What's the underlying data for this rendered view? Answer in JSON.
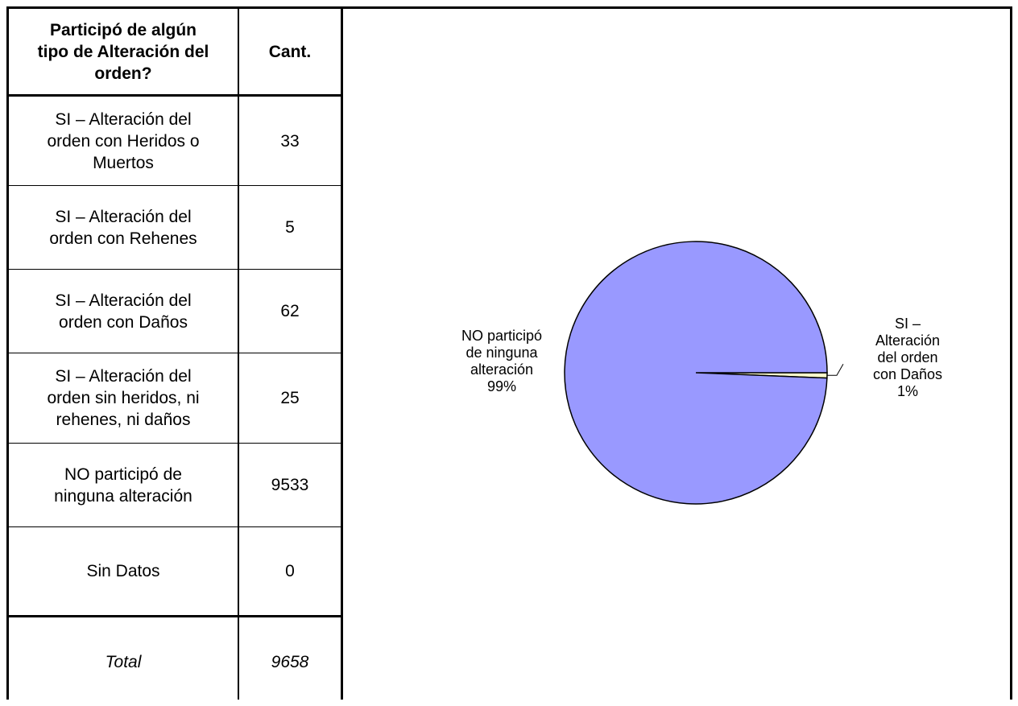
{
  "table": {
    "header_question": "Participó de algún tipo de Alteración del orden?",
    "header_question_lines": [
      "Participó de algún",
      "tipo de Alteración del",
      "orden?"
    ],
    "header_count": "Cant.",
    "rows": [
      {
        "lines": [
          "SI – Alteración del",
          "orden con Heridos o",
          "Muertos"
        ],
        "count": "33"
      },
      {
        "lines": [
          "SI – Alteración del",
          "orden con Rehenes"
        ],
        "count": "5"
      },
      {
        "lines": [
          "SI – Alteración del",
          "orden con Daños"
        ],
        "count": "62"
      },
      {
        "lines": [
          "SI – Alteración del",
          "orden sin heridos, ni",
          "rehenes, ni daños"
        ],
        "count": "25"
      },
      {
        "lines": [
          "NO participó de",
          "ninguna alteración"
        ],
        "count": "9533"
      },
      {
        "lines": [
          "Sin Datos"
        ],
        "count": "0"
      }
    ],
    "total_label": "Total",
    "total_count": "9658"
  },
  "chart_data": {
    "type": "pie",
    "slices": [
      {
        "label": "NO participó de ninguna alteración",
        "label_lines": [
          "NO participó",
          "de ninguna",
          "alteración"
        ],
        "value": 9533,
        "percent_label": "99%",
        "color": "#9999ff"
      },
      {
        "label": "SI – Alteración del orden con Daños",
        "label_lines": [
          "SI –",
          "Alteración",
          "del orden",
          "con Daños"
        ],
        "value": 62,
        "percent_label": "1%",
        "color": "#ffffcc"
      }
    ]
  }
}
